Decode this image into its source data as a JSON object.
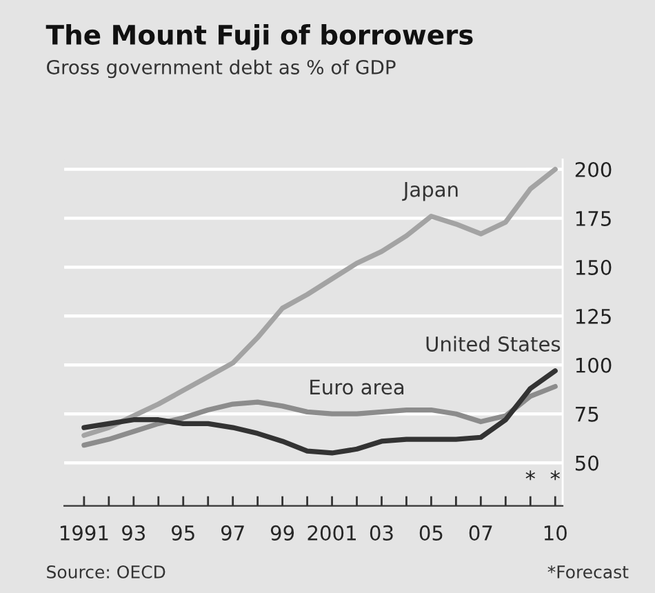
{
  "chart_data": {
    "type": "line",
    "title": "The Mount Fuji of borrowers",
    "subtitle": "Gross government debt as % of GDP",
    "x": [
      1991,
      1992,
      1993,
      1994,
      1995,
      1996,
      1997,
      1998,
      1999,
      2000,
      2001,
      2002,
      2003,
      2004,
      2005,
      2006,
      2007,
      2008,
      2009,
      2010
    ],
    "series": [
      {
        "color": "#a3a3a3",
        "values": [
          64,
          68,
          74,
          80,
          87,
          94,
          101,
          114,
          129,
          136,
          144,
          152,
          158,
          166,
          176,
          172,
          167,
          173,
          190,
          200
        ]
      },
      {
        "color": "#8c8c8c",
        "values": [
          59,
          62,
          66,
          70,
          73,
          77,
          80,
          81,
          79,
          76,
          75,
          75,
          76,
          77,
          77,
          75,
          71,
          74,
          84,
          89
        ]
      },
      {
        "color": "#333333",
        "values": [
          68,
          70,
          72,
          72,
          70,
          70,
          68,
          65,
          61,
          56,
          55,
          57,
          61,
          62,
          62,
          62,
          63,
          72,
          88,
          97
        ]
      }
    ],
    "xlim": [
      1990.2,
      2010.3
    ],
    "ylim": [
      28,
      205
    ],
    "xticks": [
      {
        "value": 1991,
        "label": "1991"
      },
      {
        "value": 1992,
        "label": null
      },
      {
        "value": 1993,
        "label": "93"
      },
      {
        "value": 1994,
        "label": null
      },
      {
        "value": 1995,
        "label": "95"
      },
      {
        "value": 1996,
        "label": null
      },
      {
        "value": 1997,
        "label": "97"
      },
      {
        "value": 1998,
        "label": null
      },
      {
        "value": 1999,
        "label": "99"
      },
      {
        "value": 2000,
        "label": null
      },
      {
        "value": 2001,
        "label": "2001"
      },
      {
        "value": 2002,
        "label": null
      },
      {
        "value": 2003,
        "label": "03"
      },
      {
        "value": 2004,
        "label": null
      },
      {
        "value": 2005,
        "label": "05"
      },
      {
        "value": 2006,
        "label": null
      },
      {
        "value": 2007,
        "label": "07"
      },
      {
        "value": 2008,
        "label": null
      },
      {
        "value": 2009,
        "label": null
      },
      {
        "value": 2010,
        "label": "10"
      }
    ],
    "yticks": [
      50,
      75,
      100,
      125,
      150,
      175,
      200
    ],
    "grid": "y",
    "legend": false,
    "marker": "none",
    "line_style": "solid",
    "annotations": [
      {
        "text": "Japan",
        "x": 2005,
        "y": 176
      },
      {
        "text": "Euro area",
        "x": 2002,
        "y": 75
      },
      {
        "text": "United States",
        "x": 2010,
        "y": 97
      },
      "Source: OECD",
      "*",
      "*",
      "*Forecast"
    ]
  }
}
